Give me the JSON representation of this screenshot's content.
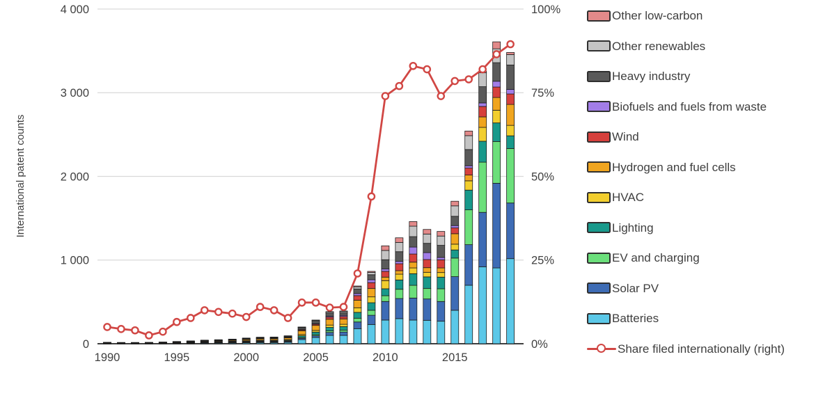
{
  "figure": {
    "left_axis_title": "International patent counts",
    "left_tick_labels": [
      "0",
      "1 000",
      "2 000",
      "3 000",
      "4 000"
    ],
    "right_tick_labels": [
      "0%",
      "25%",
      "50%",
      "75%",
      "100%"
    ],
    "x_tick_labels": [
      "1990",
      "1995",
      "2000",
      "2005",
      "2010",
      "2015"
    ]
  },
  "theme": {
    "background": "#FFFFFF",
    "grid_color": "#D9D9D9",
    "axis_color": "#3F3F3F",
    "text_color": "#404040",
    "bar_outline": "#1C1C1C",
    "line_color": "#D14744"
  },
  "chart_data": {
    "type": "bar",
    "stacked": true,
    "grid": true,
    "legend_position": "right",
    "x": [
      1990,
      1991,
      1992,
      1993,
      1994,
      1995,
      1996,
      1997,
      1998,
      1999,
      2000,
      2001,
      2002,
      2003,
      2004,
      2005,
      2006,
      2007,
      2008,
      2009,
      2010,
      2011,
      2012,
      2013,
      2014,
      2015,
      2016,
      2017,
      2018,
      2019
    ],
    "left_axis": {
      "label": "International patent counts",
      "range": [
        0,
        4000
      ],
      "tick_interval": 1000,
      "tick_values": [
        0,
        1000,
        2000,
        3000,
        4000
      ]
    },
    "right_axis": {
      "label": "Share filed internationally",
      "unit": "%",
      "range": [
        0,
        100
      ],
      "tick_interval": 25,
      "tick_values": [
        0,
        25,
        50,
        75,
        100
      ]
    },
    "x_axis": {
      "tick_years": [
        1990,
        1995,
        2000,
        2005,
        2010,
        2015
      ]
    },
    "series": [
      {
        "name": "Batteries",
        "color": "#5BC8E8",
        "values": [
          3,
          3,
          3,
          3,
          4,
          5,
          6,
          8,
          9,
          10,
          12,
          14,
          14,
          17,
          50,
          75,
          100,
          100,
          180,
          230,
          283,
          300,
          283,
          280,
          269,
          400,
          699,
          920,
          906,
          1017
        ]
      },
      {
        "name": "Solar PV",
        "color": "#3E6CB5",
        "values": [
          2,
          2,
          2,
          2,
          2,
          3,
          4,
          5,
          5,
          6,
          7,
          8,
          8,
          10,
          15,
          20,
          35,
          40,
          80,
          110,
          222,
          240,
          263,
          255,
          236,
          402,
          485,
          650,
          1012,
          665
        ]
      },
      {
        "name": "EV and charging",
        "color": "#6BDF7B",
        "values": [
          1,
          1,
          1,
          1,
          1,
          2,
          2,
          3,
          3,
          3,
          4,
          5,
          5,
          6,
          10,
          14,
          20,
          22,
          45,
          60,
          69,
          111,
          152,
          125,
          152,
          222,
          416,
          600,
          499,
          651
        ]
      },
      {
        "name": "Lighting",
        "color": "#18998B",
        "values": [
          2,
          2,
          2,
          2,
          2,
          3,
          3,
          4,
          4,
          5,
          6,
          7,
          7,
          8,
          20,
          30,
          40,
          42,
          70,
          90,
          83,
          111,
          139,
          139,
          139,
          97,
          236,
          250,
          222,
          152
        ]
      },
      {
        "name": "HVAC",
        "color": "#F2CE2E",
        "values": [
          2,
          2,
          2,
          2,
          3,
          3,
          4,
          5,
          5,
          6,
          7,
          8,
          8,
          10,
          15,
          20,
          28,
          28,
          55,
          70,
          97,
          69,
          69,
          55,
          55,
          69,
          111,
          166,
          152,
          125
        ]
      },
      {
        "name": "Hydrogen and fuel cells",
        "color": "#F0A51F",
        "values": [
          2,
          2,
          2,
          2,
          3,
          4,
          6,
          7,
          9,
          10,
          14,
          16,
          17,
          20,
          45,
          60,
          70,
          65,
          90,
          100,
          42,
          42,
          69,
          55,
          55,
          125,
          69,
          125,
          152,
          250
        ]
      },
      {
        "name": "Wind",
        "color": "#D6403C",
        "values": [
          1,
          1,
          1,
          1,
          1,
          2,
          2,
          3,
          3,
          4,
          5,
          6,
          6,
          7,
          10,
          14,
          25,
          28,
          55,
          70,
          69,
          83,
          97,
          97,
          97,
          69,
          83,
          125,
          125,
          125
        ]
      },
      {
        "name": "Biofuels and fuels from waste",
        "color": "#A27DE8",
        "values": [
          1,
          1,
          1,
          1,
          1,
          1,
          1,
          2,
          2,
          2,
          3,
          3,
          3,
          4,
          5,
          8,
          12,
          14,
          25,
          35,
          28,
          28,
          83,
          83,
          28,
          28,
          28,
          42,
          69,
          55
        ]
      },
      {
        "name": "Heavy industry",
        "color": "#5A5A5A",
        "values": [
          2,
          1,
          1,
          1,
          2,
          2,
          3,
          3,
          4,
          5,
          6,
          7,
          8,
          9,
          20,
          28,
          35,
          33,
          55,
          60,
          111,
          116,
          125,
          111,
          145,
          111,
          194,
          194,
          222,
          291
        ]
      },
      {
        "name": "Other renewables",
        "color": "#C4C4C4",
        "values": [
          1,
          0,
          0,
          1,
          1,
          2,
          3,
          3,
          4,
          4,
          4,
          4,
          4,
          4,
          8,
          11,
          14,
          15,
          25,
          28,
          111,
          111,
          125,
          111,
          111,
          125,
          166,
          166,
          166,
          125
        ]
      },
      {
        "name": "Other low-carbon",
        "color": "#E28A8A",
        "values": [
          0,
          0,
          0,
          0,
          0,
          0,
          0,
          0,
          0,
          0,
          0,
          0,
          0,
          0,
          2,
          3,
          4,
          4,
          10,
          12,
          55,
          55,
          55,
          55,
          55,
          55,
          55,
          20,
          83,
          25
        ]
      }
    ],
    "line_series": {
      "name": "Share filed internationally (right)",
      "color": "#D14744",
      "axis": "right",
      "values": [
        5.0,
        4.4,
        4.0,
        2.5,
        3.6,
        6.5,
        7.7,
        10.0,
        9.5,
        9.0,
        8.0,
        11.0,
        10.0,
        7.7,
        12.3,
        12.3,
        10.8,
        11.0,
        21.0,
        44.0,
        74.0,
        77.0,
        83.0,
        82.0,
        74.0,
        78.5,
        79.0,
        82.0,
        86.5,
        89.5
      ]
    }
  },
  "legend": {
    "items": [
      {
        "label": "Other low-carbon",
        "swatch": "box",
        "color": "#E28A8A"
      },
      {
        "label": "Other renewables",
        "swatch": "box",
        "color": "#C4C4C4"
      },
      {
        "label": "Heavy industry",
        "swatch": "box",
        "color": "#5A5A5A"
      },
      {
        "label": "Biofuels and fuels from waste",
        "swatch": "box",
        "color": "#A27DE8"
      },
      {
        "label": "Wind",
        "swatch": "box",
        "color": "#D6403C"
      },
      {
        "label": "Hydrogen and fuel cells",
        "swatch": "box",
        "color": "#F0A51F"
      },
      {
        "label": "HVAC",
        "swatch": "box",
        "color": "#F2CE2E"
      },
      {
        "label": "Lighting",
        "swatch": "box",
        "color": "#18998B"
      },
      {
        "label": "EV and charging",
        "swatch": "box",
        "color": "#6BDF7B"
      },
      {
        "label": "Solar PV",
        "swatch": "box",
        "color": "#3E6CB5"
      },
      {
        "label": "Batteries",
        "swatch": "box",
        "color": "#5BC8E8"
      },
      {
        "label": "Share filed internationally (right)",
        "swatch": "line",
        "color": "#D14744"
      }
    ]
  }
}
